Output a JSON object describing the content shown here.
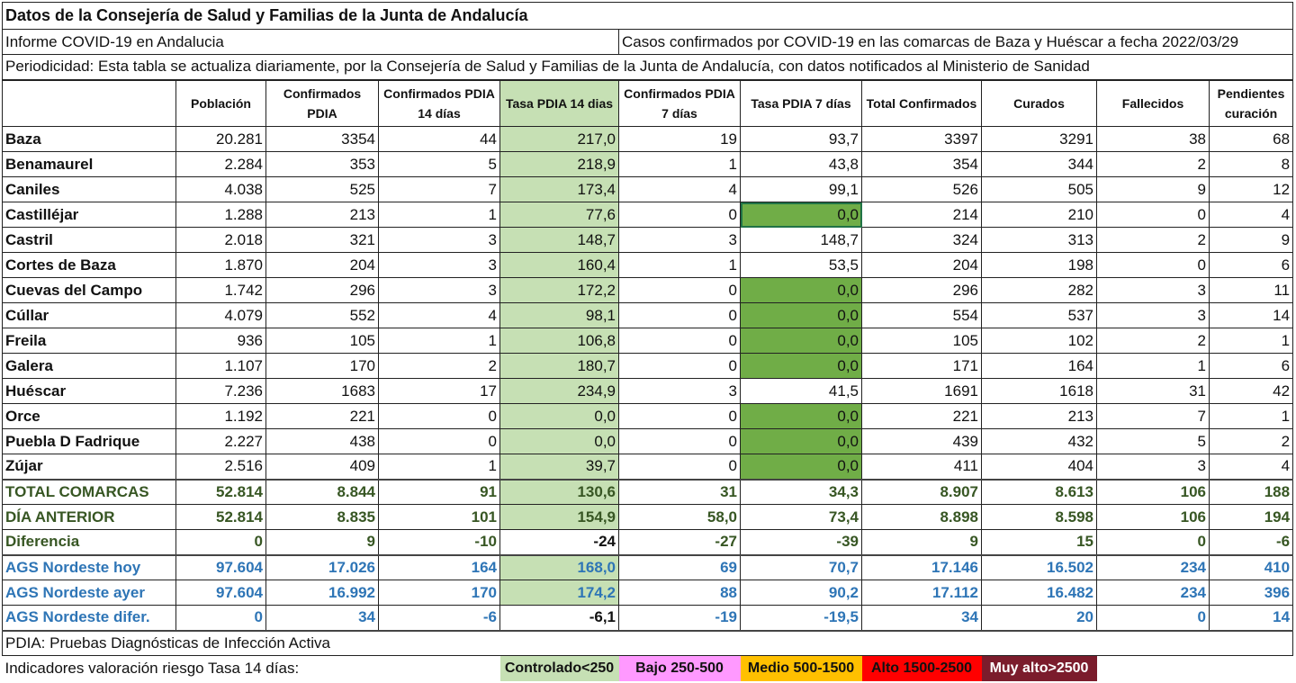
{
  "title": "Datos de la Consejería de Salud y Familias de la Junta de Andalucía",
  "report": "Informe COVID-19 en Andalucia",
  "cases_desc": "Casos confirmados por COVID-19 en las comarcas de Baza y Huéscar a fecha 2022/03/29",
  "periodicity": "Periodicidad: Esta tabla se actualiza diariamente, por la Consejería de Salud y Familias de la Junta de Andalucía, con datos notificados al Ministerio de Sanidad",
  "headers": [
    "",
    "Población",
    "Confirmados PDIA",
    "Confirmados PDIA 14 días",
    "Tasa PDIA 14 dias",
    "Confirmados PDIA 7 días",
    "Tasa PDIA 7 días",
    "Total Confirmados",
    "Curados",
    "Fallecidos",
    "Pendientes curación"
  ],
  "rows": [
    [
      "Baza",
      "20.281",
      "3354",
      "44",
      "217,0",
      "19",
      "93,7",
      "3397",
      "3291",
      "38",
      "68"
    ],
    [
      "Benamaurel",
      "2.284",
      "353",
      "5",
      "218,9",
      "1",
      "43,8",
      "354",
      "344",
      "2",
      "8"
    ],
    [
      "Caniles",
      "4.038",
      "525",
      "7",
      "173,4",
      "4",
      "99,1",
      "526",
      "505",
      "9",
      "12"
    ],
    [
      "Castilléjar",
      "1.288",
      "213",
      "1",
      "77,6",
      "0",
      "0,0",
      "214",
      "210",
      "0",
      "4"
    ],
    [
      "Castril",
      "2.018",
      "321",
      "3",
      "148,7",
      "3",
      "148,7",
      "324",
      "313",
      "2",
      "9"
    ],
    [
      "Cortes de Baza",
      "1.870",
      "204",
      "3",
      "160,4",
      "1",
      "53,5",
      "204",
      "198",
      "0",
      "6"
    ],
    [
      "Cuevas del Campo",
      "1.742",
      "296",
      "3",
      "172,2",
      "0",
      "0,0",
      "296",
      "282",
      "3",
      "11"
    ],
    [
      "Cúllar",
      "4.079",
      "552",
      "4",
      "98,1",
      "0",
      "0,0",
      "554",
      "537",
      "3",
      "14"
    ],
    [
      "Freila",
      "936",
      "105",
      "1",
      "106,8",
      "0",
      "0,0",
      "105",
      "102",
      "2",
      "1"
    ],
    [
      "Galera",
      "1.107",
      "170",
      "2",
      "180,7",
      "0",
      "0,0",
      "171",
      "164",
      "1",
      "6"
    ],
    [
      "Huéscar",
      "7.236",
      "1683",
      "17",
      "234,9",
      "3",
      "41,5",
      "1691",
      "1618",
      "31",
      "42"
    ],
    [
      "Orce",
      "1.192",
      "221",
      "0",
      "0,0",
      "0",
      "0,0",
      "221",
      "213",
      "7",
      "1"
    ],
    [
      "Puebla D Fadrique",
      "2.227",
      "438",
      "0",
      "0,0",
      "0",
      "0,0",
      "439",
      "432",
      "5",
      "2"
    ],
    [
      "Zújar",
      "2.516",
      "409",
      "1",
      "39,7",
      "0",
      "0,0",
      "411",
      "404",
      "3",
      "4"
    ]
  ],
  "totals": [
    [
      "TOTAL COMARCAS",
      "52.814",
      "8.844",
      "91",
      "130,6",
      "31",
      "34,3",
      "8.907",
      "8.613",
      "106",
      "188"
    ],
    [
      "DÍA ANTERIOR",
      "52.814",
      "8.835",
      "101",
      "154,9",
      "58,0",
      "73,4",
      "8.898",
      "8.598",
      "106",
      "194"
    ],
    [
      "Diferencia",
      "0",
      "9",
      "-10",
      "-24",
      "-27",
      "-39",
      "9",
      "15",
      "0",
      "-6"
    ]
  ],
  "ags": [
    [
      "AGS Nordeste hoy",
      "97.604",
      "17.026",
      "164",
      "168,0",
      "69",
      "70,7",
      "17.146",
      "16.502",
      "234",
      "410"
    ],
    [
      "AGS Nordeste ayer",
      "97.604",
      "16.992",
      "170",
      "174,2",
      "88",
      "90,2",
      "17.112",
      "16.482",
      "234",
      "396"
    ],
    [
      "AGS Nordeste difer.",
      "0",
      "34",
      "-6",
      "-6,1",
      "-19",
      "-19,5",
      "34",
      "20",
      "0",
      "14"
    ]
  ],
  "footnote": "PDIA: Pruebas Diagnósticas de Infección Activa",
  "legend": {
    "label": "Indicadores valoración riesgo Tasa 14 días:",
    "items": [
      {
        "text": "Controlado<250",
        "color": "#c6e0b4",
        "fg": "#111"
      },
      {
        "text": "Bajo 250-500",
        "color": "#ff99ff",
        "fg": "#111"
      },
      {
        "text": "Medio 500-1500",
        "color": "#ffc000",
        "fg": "#111"
      },
      {
        "text": "Alto 1500-2500",
        "color": "#ff0000",
        "fg": "#111"
      },
      {
        "text": "Muy alto>2500",
        "color": "#7b1c2c",
        "fg": "#fff"
      }
    ]
  }
}
